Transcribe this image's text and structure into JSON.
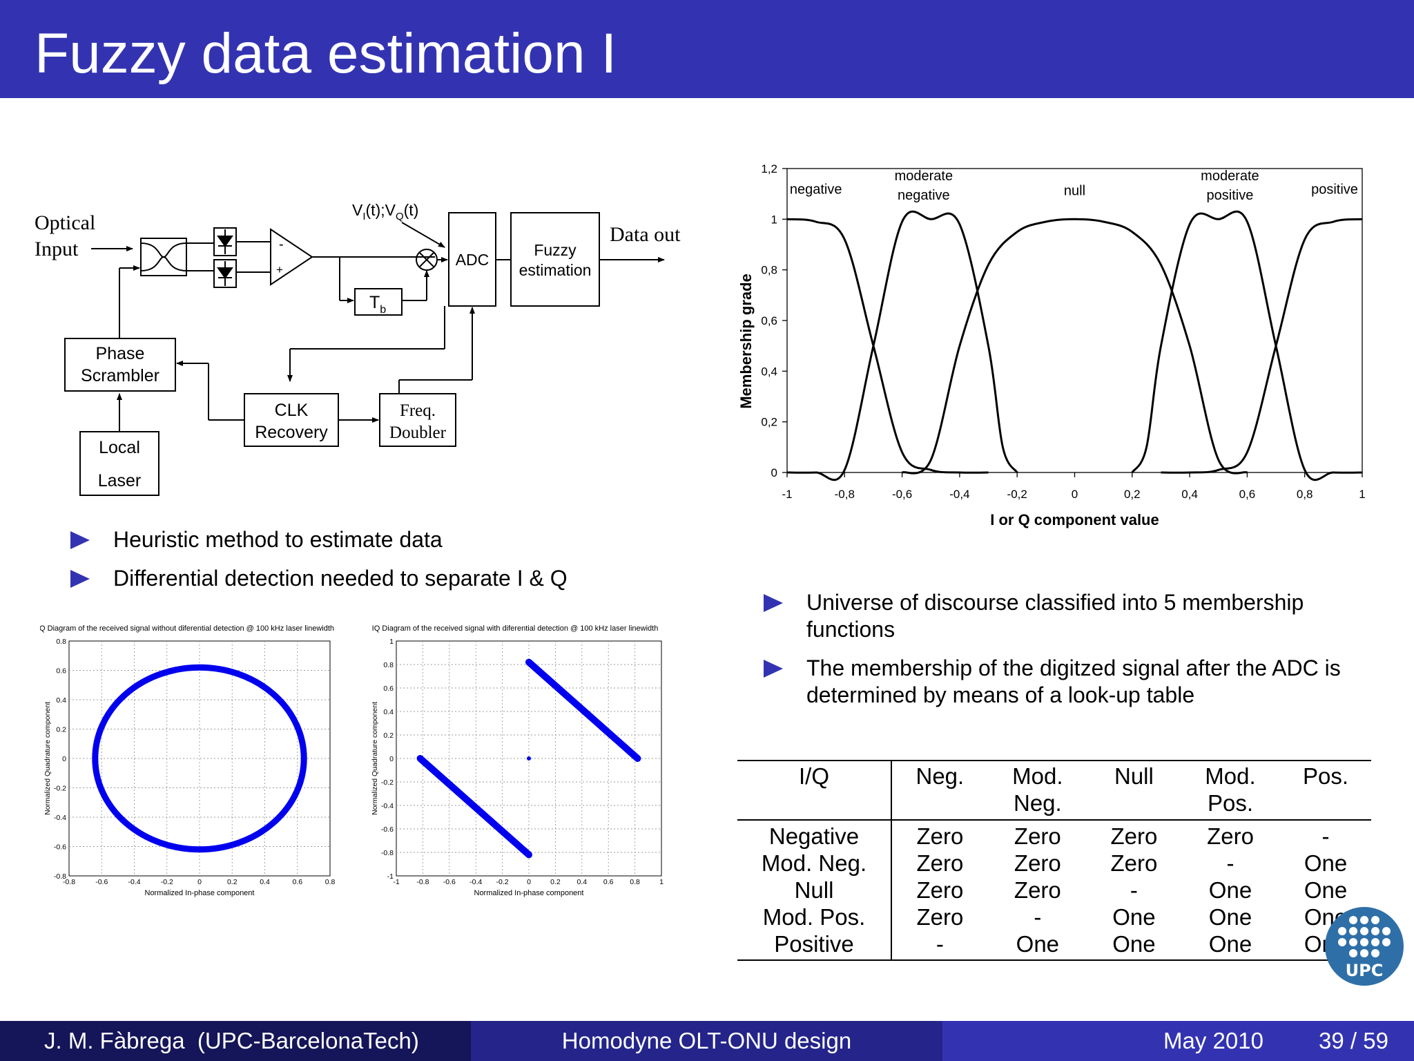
{
  "slide": {
    "title": "Fuzzy data estimation I"
  },
  "block_diagram": {
    "optical_input": [
      "Optical",
      "Input"
    ],
    "signal_label": {
      "v": "V",
      "i_sub": "I",
      "t1": "(t);V",
      "q_sub": "Q",
      "t2": "(t)"
    },
    "adc": "ADC",
    "fuzzy": [
      "Fuzzy",
      "estimation"
    ],
    "data_out": "Data out",
    "tb": {
      "t": "T",
      "sub": "b"
    },
    "phase_scrambler": [
      "Phase",
      "Scrambler"
    ],
    "clk_recovery": [
      "CLK",
      "Recovery"
    ],
    "freq_doubler": [
      "Freq.",
      "Doubler"
    ],
    "local_laser": [
      "Local",
      "Laser"
    ],
    "minus": "-",
    "plus": "+"
  },
  "bullets_left": [
    "Heuristic method to estimate data",
    "Differential detection needed to separate I & Q"
  ],
  "bullets_right": [
    [
      "Universe of discourse classified into 5 membership",
      "functions"
    ],
    [
      "The membership of the digitzed signal after the ADC is",
      "determined by means of a look-up table"
    ]
  ],
  "chart_data": [
    {
      "type": "line",
      "xlabel": "I or Q component value",
      "ylabel": "Membership grade",
      "xlim": [
        -1,
        1
      ],
      "ylim": [
        0,
        1.2
      ],
      "xticks": [
        "-1",
        "-0,8",
        "-0,6",
        "-0,4",
        "-0,2",
        "0",
        "0,2",
        "0,4",
        "0,6",
        "0,8",
        "1"
      ],
      "yticks": [
        "0",
        "0,2",
        "0,4",
        "0,6",
        "0,8",
        "1",
        "1,2"
      ],
      "series": [
        {
          "name": "negative",
          "x": [
            -1,
            -0.9,
            -0.8,
            -0.7,
            -0.6,
            -0.5,
            -0.4,
            -0.3
          ],
          "y": [
            1,
            0.99,
            0.92,
            0.5,
            0.08,
            0.01,
            0,
            0
          ]
        },
        {
          "name": "moderate negative",
          "x": [
            -1,
            -0.9,
            -0.8,
            -0.7,
            -0.6,
            -0.5,
            -0.4,
            -0.3,
            -0.25,
            -0.2
          ],
          "y": [
            0,
            0,
            0.01,
            0.5,
            0.99,
            1,
            0.98,
            0.5,
            0.1,
            0
          ]
        },
        {
          "name": "null",
          "x": [
            -0.6,
            -0.5,
            -0.4,
            -0.3,
            -0.2,
            -0.1,
            0,
            0.1,
            0.2,
            0.3,
            0.4,
            0.5,
            0.6
          ],
          "y": [
            0,
            0.05,
            0.5,
            0.82,
            0.95,
            0.99,
            1,
            0.99,
            0.95,
            0.82,
            0.5,
            0.05,
            0
          ]
        },
        {
          "name": "moderate positive",
          "x": [
            0.2,
            0.25,
            0.3,
            0.4,
            0.5,
            0.6,
            0.7,
            0.8,
            0.9,
            1
          ],
          "y": [
            0,
            0.1,
            0.5,
            0.98,
            1,
            0.99,
            0.5,
            0.01,
            0,
            0
          ]
        },
        {
          "name": "positive",
          "x": [
            0.3,
            0.4,
            0.5,
            0.6,
            0.7,
            0.8,
            0.9,
            1
          ],
          "y": [
            0,
            0,
            0.01,
            0.08,
            0.5,
            0.92,
            0.99,
            1
          ]
        }
      ]
    },
    {
      "type": "scatter",
      "title": "IQ Diagram of the received signal without diferential detection @ 100 kHz laser linewidth",
      "xlabel": "Normalized In-phase component",
      "ylabel": "Normalized Quadrature component",
      "xlim": [
        -0.8,
        0.8
      ],
      "ylim": [
        -0.8,
        0.8
      ],
      "xticks": [
        "-0.8",
        "-0.6",
        "-0.4",
        "-0.2",
        "0",
        "0.2",
        "0.4",
        "0.6",
        "0.8"
      ],
      "yticks": [
        "-0.8",
        "-0.6",
        "-0.4",
        "-0.2",
        "0",
        "0.2",
        "0.4",
        "0.6",
        "0.8"
      ],
      "shape": {
        "kind": "ellipse",
        "center": [
          0,
          0
        ],
        "radius_x": 0.64,
        "radius_y": 0.62
      },
      "color": "#0000ee"
    },
    {
      "type": "scatter",
      "title": "IQ Diagram of the received signal with diferential detection @ 100 kHz laser linewidth",
      "xlabel": "Normalized In-phase component",
      "ylabel": "Normalized Quadrature component",
      "xlim": [
        -1,
        1
      ],
      "ylim": [
        -1,
        1
      ],
      "xticks": [
        "-1",
        "-0.8",
        "-0.6",
        "-0.4",
        "-0.2",
        "0",
        "0.2",
        "0.4",
        "0.6",
        "0.8",
        "1"
      ],
      "yticks": [
        "-1",
        "-0.8",
        "-0.6",
        "-0.4",
        "-0.2",
        "0",
        "0.2",
        "0.4",
        "0.6",
        "0.8",
        "1"
      ],
      "segments": [
        {
          "x": [
            -0.82,
            0
          ],
          "y": [
            0,
            -0.82
          ]
        },
        {
          "x": [
            0,
            0.82
          ],
          "y": [
            0.82,
            0
          ]
        }
      ],
      "points": [
        {
          "x": 0,
          "y": 0
        }
      ],
      "color": "#0000ee"
    }
  ],
  "lookup_table": {
    "headers": [
      [
        "I/Q"
      ],
      [
        "Neg."
      ],
      [
        "Mod.",
        "Neg."
      ],
      [
        "Null"
      ],
      [
        "Mod.",
        "Pos."
      ],
      [
        "Pos."
      ]
    ],
    "rows": [
      [
        "Negative",
        "Zero",
        "Zero",
        "Zero",
        "Zero",
        "-"
      ],
      [
        "Mod. Neg.",
        "Zero",
        "Zero",
        "Zero",
        "-",
        "One"
      ],
      [
        "Null",
        "Zero",
        "Zero",
        "-",
        "One",
        "One"
      ],
      [
        "Mod. Pos.",
        "Zero",
        "-",
        "One",
        "One",
        "One"
      ],
      [
        "Positive",
        "-",
        "One",
        "One",
        "One",
        "One"
      ]
    ]
  },
  "logo": {
    "text": "UPC"
  },
  "footer": {
    "author": "J. M. Fàbrega  (UPC-BarcelonaTech)",
    "talk": "Homodyne OLT-ONU design",
    "date": "May 2010",
    "page": "39 / 59"
  },
  "colors": {
    "primary": "#3333b2",
    "footer_left": "#151559",
    "footer_mid": "#24248a",
    "footer_right": "#3333b2",
    "logo": "#2f6fa8",
    "scatter": "#0000ee"
  }
}
